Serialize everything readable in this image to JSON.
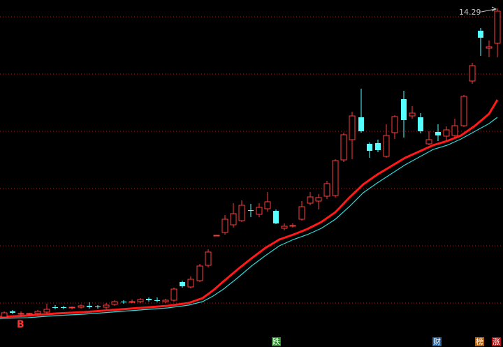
{
  "chart_data": {
    "type": "candlestick",
    "price_label": "14.29",
    "marker_label": "B",
    "colors": {
      "up": "#ff3c3c",
      "down": "#54ffff",
      "ma_fast": "#ff1a1a",
      "ma_slow": "#2fd8d8",
      "grid": "#a02020",
      "background": "#000000"
    },
    "gridlines": true,
    "badges": [
      {
        "text": "跌",
        "color": "#2a8a2a"
      },
      {
        "text": "财",
        "color": "#2060a0"
      },
      {
        "text": "榜",
        "color": "#b06010"
      },
      {
        "text": "涨",
        "color": "#b01010"
      }
    ]
  }
}
